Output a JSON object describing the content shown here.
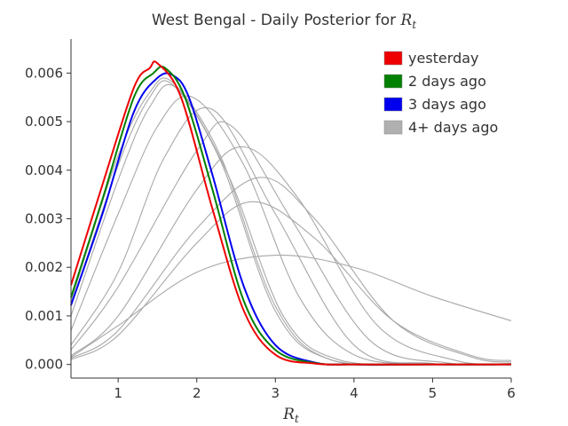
{
  "chart_data": {
    "type": "line",
    "title": "West Bengal - Daily Posterior for ",
    "title_var": "R",
    "title_sub": "t",
    "xlabel_var": "R",
    "xlabel_sub": "t",
    "ylabel": "",
    "xlim": [
      0.4,
      6.0
    ],
    "ylim": [
      -0.00028,
      0.0067
    ],
    "xticks": [
      1,
      2,
      3,
      4,
      5,
      6
    ],
    "xtick_labels": [
      "1",
      "2",
      "3",
      "4",
      "5",
      "6"
    ],
    "yticks": [
      0,
      0.001,
      0.002,
      0.003,
      0.004,
      0.005,
      0.006
    ],
    "ytick_labels": [
      "0.000",
      "0.001",
      "0.002",
      "0.003",
      "0.004",
      "0.005",
      "0.006"
    ],
    "grid": false,
    "legend_position": "top-right",
    "legend": [
      {
        "label": "yesterday",
        "color": "#ee0000"
      },
      {
        "label": "2 days ago",
        "color": "#008000"
      },
      {
        "label": "3 days ago",
        "color": "#0000ee"
      },
      {
        "label": "4+ days ago",
        "color": "#b0b0b0"
      }
    ],
    "series": [
      {
        "group": "4+ days ago",
        "color": "#a8a8a8",
        "x": [
          0.4,
          1.0,
          2.0,
          3.0,
          4.0,
          5.0,
          6.0
        ],
        "y": [
          0.00015,
          0.0008,
          0.0019,
          0.00225,
          0.002,
          0.0014,
          0.0009
        ]
      },
      {
        "group": "4+ days ago",
        "color": "#a8a8a8",
        "x": [
          0.4,
          1.0,
          2.0,
          2.7,
          3.5,
          4.5,
          5.5,
          6.0
        ],
        "y": [
          0.0001,
          0.0006,
          0.0025,
          0.00335,
          0.0026,
          0.0009,
          0.00018,
          8e-05
        ]
      },
      {
        "group": "4+ days ago",
        "color": "#a8a8a8",
        "x": [
          0.4,
          1.0,
          2.0,
          2.8,
          3.5,
          4.5,
          5.5,
          6.0
        ],
        "y": [
          0.00013,
          0.0007,
          0.0028,
          0.00385,
          0.003,
          0.0009,
          0.00015,
          5e-05
        ]
      },
      {
        "group": "4+ days ago",
        "color": "#a8a8a8",
        "x": [
          0.4,
          1.0,
          2.0,
          2.6,
          3.3,
          4.3,
          5.3,
          6.0
        ],
        "y": [
          0.00018,
          0.001,
          0.0036,
          0.00448,
          0.0034,
          0.0008,
          8e-05,
          2e-05
        ]
      },
      {
        "group": "4+ days ago",
        "color": "#a8a8a8",
        "x": [
          0.4,
          1.0,
          2.0,
          2.45,
          3.2,
          4.2,
          5.2,
          6.0
        ],
        "y": [
          0.0003,
          0.0016,
          0.0044,
          0.0049,
          0.003,
          0.0005,
          3e-05,
          0.0
        ]
      },
      {
        "group": "4+ days ago",
        "color": "#a8a8a8",
        "x": [
          0.4,
          1.0,
          1.6,
          2.2,
          3.0,
          4.0,
          5.0,
          6.0
        ],
        "y": [
          0.0004,
          0.0019,
          0.0043,
          0.00525,
          0.0031,
          0.0004,
          2e-05,
          0.0
        ]
      },
      {
        "group": "4+ days ago",
        "color": "#a8a8a8",
        "x": [
          0.4,
          1.0,
          1.5,
          1.95,
          2.6,
          3.3,
          4.0,
          5.0,
          6.0
        ],
        "y": [
          0.0007,
          0.0031,
          0.0049,
          0.0055,
          0.0041,
          0.0014,
          0.0002,
          0.0,
          0.0
        ]
      },
      {
        "group": "4+ days ago",
        "color": "#a8a8a8",
        "x": [
          0.4,
          1.0,
          1.4,
          1.75,
          2.4,
          3.1,
          3.8,
          5.0,
          6.0
        ],
        "y": [
          0.001,
          0.0038,
          0.0053,
          0.00568,
          0.0039,
          0.001,
          0.0001,
          0.0,
          0.0
        ]
      },
      {
        "group": "4+ days ago",
        "color": "#a8a8a8",
        "x": [
          0.4,
          1.0,
          1.4,
          1.7,
          2.3,
          3.0,
          3.7,
          5.0,
          6.0
        ],
        "y": [
          0.0012,
          0.0041,
          0.0055,
          0.00575,
          0.0042,
          0.0011,
          0.0001,
          0.0,
          0.0
        ]
      },
      {
        "group": "4+ days ago",
        "color": "#a8a8a8",
        "x": [
          0.4,
          1.0,
          1.4,
          1.7,
          2.3,
          3.0,
          3.7,
          5.0,
          6.0
        ],
        "y": [
          0.0013,
          0.0043,
          0.0056,
          0.0058,
          0.0043,
          0.0012,
          0.0001,
          0.0,
          0.0
        ]
      },
      {
        "group": "3 days ago",
        "color": "#0000ee",
        "x": [
          0.4,
          0.8,
          1.2,
          1.5,
          1.7,
          1.9,
          2.2,
          2.6,
          3.0,
          3.5,
          4.0,
          5.0,
          6.0
        ],
        "y": [
          0.00122,
          0.0031,
          0.0052,
          0.0059,
          0.00595,
          0.0055,
          0.0039,
          0.0016,
          0.0004,
          4e-05,
          0.0,
          0.0,
          0.0
        ]
      },
      {
        "group": "2 days ago",
        "color": "#008000",
        "x": [
          0.4,
          0.8,
          1.2,
          1.45,
          1.6,
          1.85,
          2.2,
          2.6,
          3.0,
          3.5,
          4.0,
          5.0,
          6.0
        ],
        "y": [
          0.00138,
          0.0034,
          0.0055,
          0.006,
          0.0061,
          0.0055,
          0.0036,
          0.0013,
          0.0003,
          3e-05,
          0.0,
          0.0,
          0.0
        ]
      },
      {
        "group": "yesterday",
        "color": "#ee0000",
        "x": [
          0.4,
          0.8,
          1.2,
          1.4,
          1.5,
          1.8,
          2.2,
          2.6,
          3.0,
          3.5,
          4.0,
          5.0,
          6.0
        ],
        "y": [
          0.00163,
          0.0037,
          0.0057,
          0.0061,
          0.0062,
          0.0055,
          0.0032,
          0.0011,
          0.0002,
          2e-05,
          0.0,
          0.0,
          0.0
        ]
      }
    ]
  }
}
